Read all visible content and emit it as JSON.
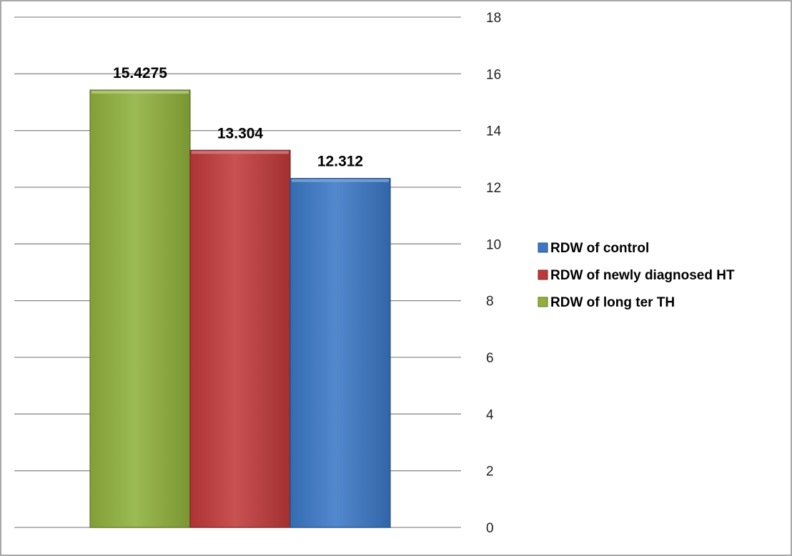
{
  "chart_data": {
    "type": "bar",
    "series": [
      {
        "name": "RDW of long ter TH",
        "value": 15.4275,
        "label": "15.4275",
        "color": "#8fb13b"
      },
      {
        "name": "RDW of newly diagnosed HT",
        "value": 13.304,
        "label": "13.304",
        "color": "#c0393a"
      },
      {
        "name": "RDW of control",
        "value": 12.312,
        "label": "12.312",
        "color": "#3a78c6"
      }
    ],
    "legend_order": [
      2,
      1,
      0
    ],
    "ylim": [
      0,
      18
    ],
    "yticks": [
      "0",
      "2",
      "4",
      "6",
      "8",
      "10",
      "12",
      "14",
      "16",
      "18"
    ],
    "ytick_values": [
      0,
      2,
      4,
      6,
      8,
      10,
      12,
      14,
      16,
      18
    ],
    "y_axis_side": "right",
    "grid": true,
    "legend_position": "right",
    "title": "",
    "xlabel": "",
    "ylabel": ""
  }
}
